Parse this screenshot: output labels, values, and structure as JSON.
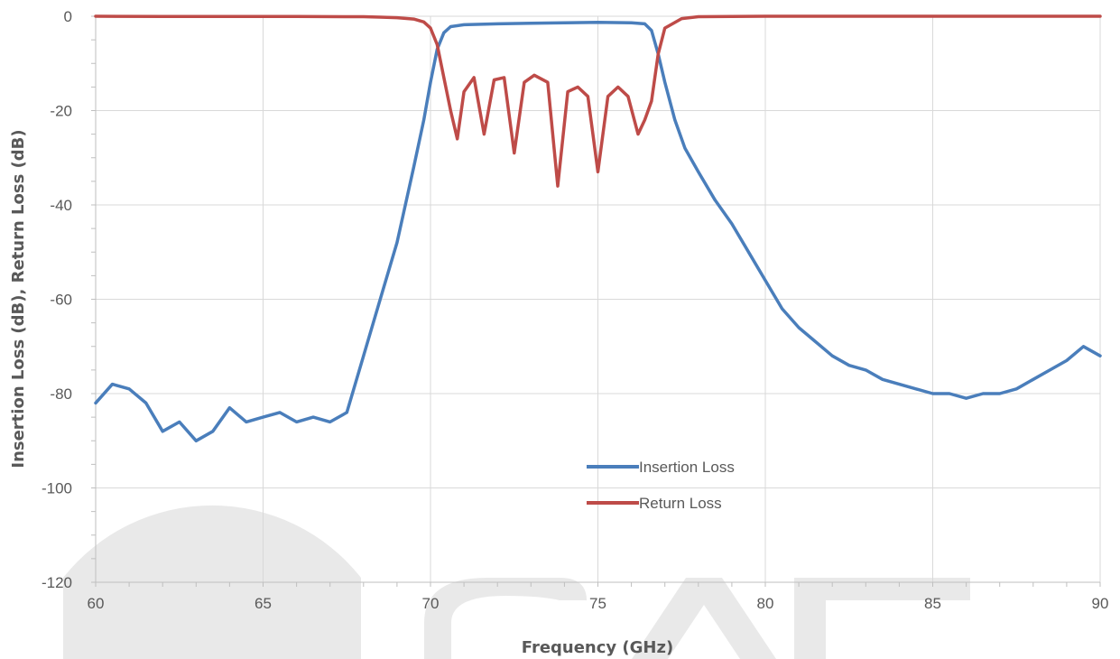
{
  "watermark": "SAGE",
  "chart_data": {
    "type": "line",
    "title": "",
    "xlabel": "Frequency (GHz)",
    "ylabel": "Insertion Loss (dB), Return Loss (dB)",
    "xlim": [
      60,
      90
    ],
    "ylim": [
      -120,
      0
    ],
    "x_ticks": [
      60,
      65,
      70,
      75,
      80,
      85,
      90
    ],
    "y_ticks": [
      0,
      -20,
      -40,
      -60,
      -80,
      -100,
      -120
    ],
    "grid": true,
    "legend_position": "inside-lower-center",
    "noise_floor_note_free": true,
    "series": [
      {
        "name": "Insertion Loss",
        "color": "#4a7ebb",
        "x": [
          60,
          60.5,
          61,
          61.5,
          62,
          62.5,
          63,
          63.5,
          64,
          64.5,
          65,
          65.5,
          66,
          66.5,
          67,
          67.5,
          68,
          68.5,
          69,
          69.5,
          69.8,
          70,
          70.2,
          70.4,
          70.6,
          71,
          72,
          73,
          74,
          75,
          76,
          76.4,
          76.6,
          76.8,
          77,
          77.3,
          77.6,
          78,
          78.5,
          79,
          79.5,
          80,
          80.5,
          81,
          81.5,
          82,
          82.5,
          83,
          83.5,
          84,
          84.5,
          85,
          85.5,
          86,
          86.5,
          87,
          87.5,
          88,
          88.5,
          89,
          89.5,
          90
        ],
        "y": [
          -82,
          -78,
          -79,
          -82,
          -88,
          -86,
          -90,
          -88,
          -83,
          -86,
          -85,
          -84,
          -86,
          -85,
          -86,
          -84,
          -72,
          -60,
          -48,
          -32,
          -22,
          -14,
          -7,
          -3.5,
          -2.2,
          -1.8,
          -1.6,
          -1.5,
          -1.4,
          -1.3,
          -1.4,
          -1.6,
          -3,
          -8,
          -14,
          -22,
          -28,
          -33,
          -39,
          -44,
          -50,
          -56,
          -62,
          -66,
          -69,
          -72,
          -74,
          -75,
          -77,
          -78,
          -79,
          -80,
          -80,
          -81,
          -80,
          -80,
          -79,
          -77,
          -75,
          -73,
          -70,
          -72
        ]
      },
      {
        "name": "Return Loss",
        "color": "#be4b48",
        "x": [
          60,
          62,
          64,
          66,
          68,
          68.5,
          69,
          69.5,
          69.8,
          70,
          70.2,
          70.4,
          70.6,
          70.8,
          71,
          71.3,
          71.6,
          71.9,
          72.2,
          72.5,
          72.8,
          73.1,
          73.5,
          73.8,
          74.1,
          74.4,
          74.7,
          75,
          75.3,
          75.6,
          75.9,
          76.2,
          76.4,
          76.6,
          76.8,
          77,
          77.5,
          78,
          80,
          85,
          90
        ],
        "y": [
          0,
          -0.05,
          -0.05,
          -0.05,
          -0.1,
          -0.2,
          -0.3,
          -0.6,
          -1.2,
          -2.5,
          -6,
          -13,
          -20,
          -26,
          -16,
          -13,
          -25,
          -13.5,
          -13,
          -29,
          -14,
          -12.5,
          -14,
          -36,
          -16,
          -15,
          -17,
          -33,
          -17,
          -15,
          -17,
          -25,
          -22,
          -18,
          -8,
          -2.5,
          -0.5,
          -0.1,
          0,
          0,
          0
        ]
      }
    ]
  },
  "legend": [
    {
      "label": "Insertion Loss",
      "color": "#4a7ebb"
    },
    {
      "label": "Return Loss",
      "color": "#be4b48"
    }
  ]
}
